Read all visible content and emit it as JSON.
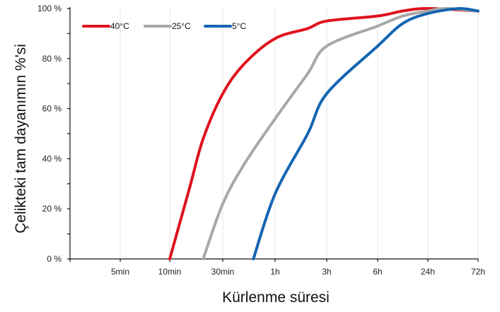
{
  "chart_data": {
    "type": "line",
    "title": "",
    "xlabel": "Kürlenme süresi",
    "ylabel": "Çelikteki tam dayanımın %'si",
    "x_scale": "categorical-time",
    "categories": [
      "5min",
      "10min",
      "30min",
      "1h",
      "3h",
      "6h",
      "24h",
      "72h"
    ],
    "y_ticks": [
      "0 %",
      "20 %",
      "40 %",
      "60 %",
      "80 %",
      "100 %"
    ],
    "ylim": [
      0,
      100
    ],
    "grid": "vertical-only",
    "legend_position": "top-left",
    "series": [
      {
        "name": "40°C",
        "color": "#e0121e",
        "points": [
          [
            "10min",
            0
          ],
          [
            "15min",
            28
          ],
          [
            "20min",
            48
          ],
          [
            "30min",
            66
          ],
          [
            "40min",
            78
          ],
          [
            "1h",
            88
          ],
          [
            "2h",
            92
          ],
          [
            "3h",
            95
          ],
          [
            "6h",
            97
          ],
          [
            "12h",
            99
          ],
          [
            "24h",
            100
          ],
          [
            "72h",
            99
          ]
        ]
      },
      {
        "name": "25°C",
        "color": "#a8a8a8",
        "points": [
          [
            "20min",
            0
          ],
          [
            "30min",
            22
          ],
          [
            "40min",
            38
          ],
          [
            "1h",
            56
          ],
          [
            "2h",
            74
          ],
          [
            "3h",
            85
          ],
          [
            "6h",
            93
          ],
          [
            "12h",
            97
          ],
          [
            "24h",
            99
          ],
          [
            "36h",
            100
          ],
          [
            "72h",
            99
          ]
        ]
      },
      {
        "name": "5°C",
        "color": "#1565b2",
        "points": [
          [
            "45min",
            0
          ],
          [
            "1h",
            26
          ],
          [
            "2h",
            50
          ],
          [
            "3h",
            66
          ],
          [
            "6h",
            85
          ],
          [
            "12h",
            94
          ],
          [
            "24h",
            98
          ],
          [
            "48h",
            100
          ],
          [
            "72h",
            99
          ]
        ]
      }
    ]
  }
}
